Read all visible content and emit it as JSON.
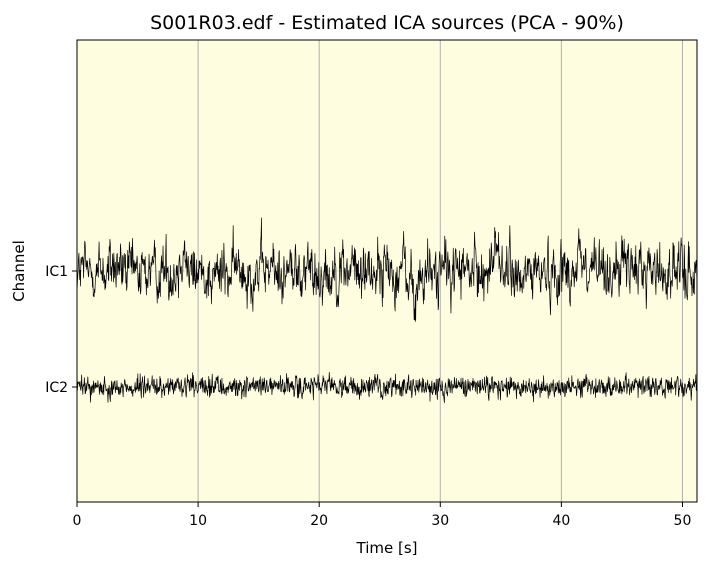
{
  "chart_data": {
    "type": "line",
    "title": "S001R03.edf - Estimated ICA sources (PCA - 90%)",
    "xlabel": "Time [s]",
    "ylabel": "Channel",
    "xlim": [
      0,
      51.2
    ],
    "x_ticks": [
      "0",
      "10",
      "20",
      "30",
      "40",
      "50"
    ],
    "x_tick_values": [
      0,
      10,
      20,
      30,
      40,
      50
    ],
    "channels": [
      "IC1",
      "IC2"
    ],
    "grid": "vertical",
    "background_color": "#fffde0",
    "trace_color": "#000000",
    "series": [
      {
        "name": "IC1",
        "events": [
          {
            "t": 8.8,
            "v": 1.2
          },
          {
            "t": 27.9,
            "v": -1.5
          },
          {
            "t": 34.6,
            "v": 1.6
          },
          {
            "t": 36.6,
            "v": -1.3
          },
          {
            "t": 41.5,
            "v": 1.2
          }
        ]
      },
      {
        "name": "IC2",
        "events": []
      }
    ]
  }
}
